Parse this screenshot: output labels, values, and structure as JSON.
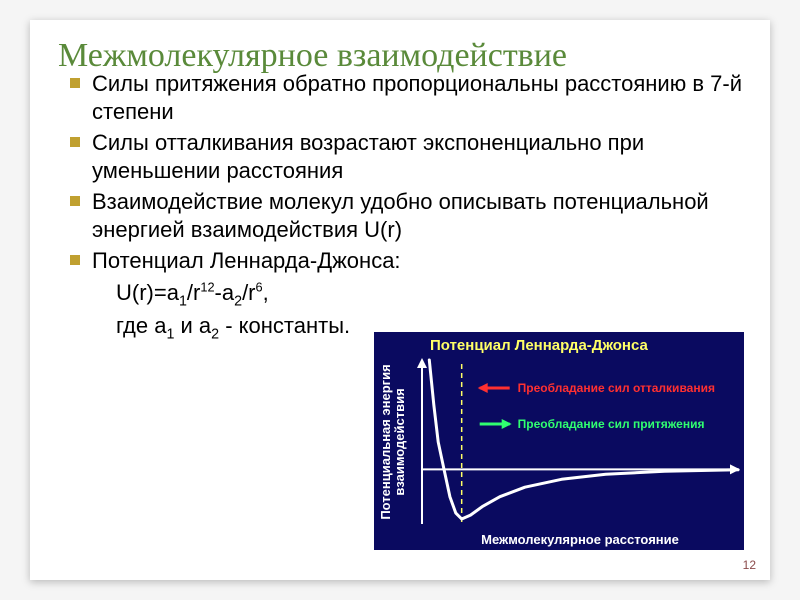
{
  "title": "Межмолекулярное взаимодействие",
  "bullets": [
    "Силы притяжения обратно пропорциональны расстоянию в 7-й степени",
    "Силы отталкивания возрастают экспоненциально при уменьшении расстояния",
    "Взаимодействие молекул удобно описывать потенциальной энергией взаимодействия U(r)",
    "Потенциал Леннарда-Джонса:"
  ],
  "formula_html": "U(r)=a<sub>1</sub>/r<span class='sup'>12</span>-a<sub>2</sub>/r<span class='sup'>6</span>,",
  "constants_html": "где a<sub>1</sub> и a<sub>2</sub> - константы.",
  "pagenum": "12",
  "chart": {
    "type": "line",
    "title": "Потенциал Леннарда-Джонса",
    "xlabel": "Межмолекулярное расстояние",
    "ylabel": "Потенциальная энергия взаимодействия",
    "legend_repulsion": "Преобладание сил отталкивания",
    "legend_attraction": "Преобладание сил притяжения",
    "background_color": "#0a0a60",
    "curve_color": "#ffffff",
    "curve_width": 3,
    "dash_color": "#ffff66",
    "arrow_red": "#ff3030",
    "arrow_green": "#30ff70",
    "xlim": [
      0.85,
      3.0
    ],
    "ylim": [
      -1.1,
      2.2
    ],
    "well_x": 1.12,
    "curve_points": [
      [
        0.9,
        2.2
      ],
      [
        0.93,
        1.3
      ],
      [
        0.96,
        0.55
      ],
      [
        1.0,
        0.0
      ],
      [
        1.04,
        -0.55
      ],
      [
        1.08,
        -0.88
      ],
      [
        1.12,
        -1.0
      ],
      [
        1.18,
        -0.92
      ],
      [
        1.26,
        -0.75
      ],
      [
        1.38,
        -0.55
      ],
      [
        1.55,
        -0.36
      ],
      [
        1.8,
        -0.2
      ],
      [
        2.1,
        -0.1
      ],
      [
        2.5,
        -0.04
      ],
      [
        3.0,
        -0.01
      ]
    ]
  }
}
